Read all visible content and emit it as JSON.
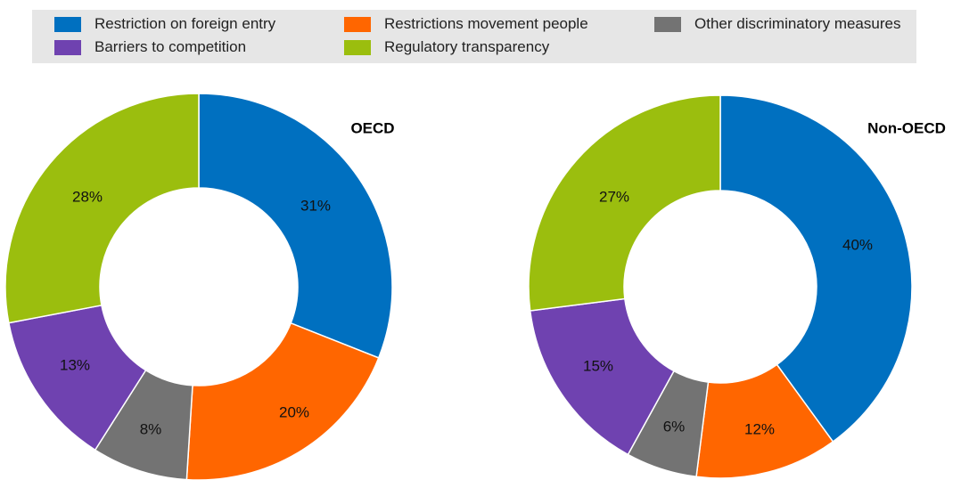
{
  "legend": [
    {
      "label": "Restriction on foreign entry",
      "color": "#0070c0"
    },
    {
      "label": "Restrictions movement people",
      "color": "#ff6600"
    },
    {
      "label": "Other discriminatory measures",
      "color": "#737373"
    },
    {
      "label": "Barriers to competition",
      "color": "#6f42b0"
    },
    {
      "label": "Regulatory transparency",
      "color": "#9bbe0e"
    }
  ],
  "chart_data": [
    {
      "type": "pie",
      "title": "OECD",
      "donut": true,
      "categories": [
        "Restriction on foreign entry",
        "Restrictions movement people",
        "Other discriminatory measures",
        "Barriers to competition",
        "Regulatory transparency"
      ],
      "values": [
        31,
        20,
        8,
        13,
        28
      ],
      "labels": [
        "31%",
        "20%",
        "8%",
        "13%",
        "28%"
      ],
      "colors": [
        "#0070c0",
        "#ff6600",
        "#737373",
        "#6f42b0",
        "#9bbe0e"
      ]
    },
    {
      "type": "pie",
      "title": "Non-OECD",
      "donut": true,
      "categories": [
        "Restriction on foreign entry",
        "Restrictions movement people",
        "Other discriminatory measures",
        "Barriers to competition",
        "Regulatory transparency"
      ],
      "values": [
        40,
        12,
        6,
        15,
        27
      ],
      "labels": [
        "40%",
        "12%",
        "6%",
        "15%",
        "27%"
      ],
      "colors": [
        "#0070c0",
        "#ff6600",
        "#737373",
        "#6f42b0",
        "#9bbe0e"
      ]
    }
  ]
}
